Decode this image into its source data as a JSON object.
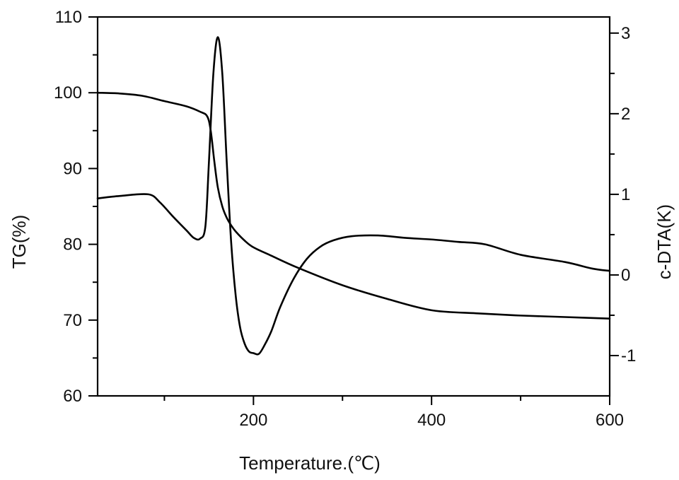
{
  "chart_data": {
    "type": "line",
    "title": "",
    "xlabel": "Temperature.(℃)",
    "ylabel": "TG(%)",
    "y2label": "c-DTA(K)",
    "xlim": [
      25,
      600
    ],
    "ylim": [
      60,
      110
    ],
    "y2lim": [
      -1.5,
      3.2
    ],
    "x_major_ticks": [
      200,
      400,
      600
    ],
    "x_minor_ticks": [
      100,
      300,
      500
    ],
    "x_tick_labels": [
      "200",
      "400",
      "600"
    ],
    "y_ticks": [
      60,
      70,
      80,
      90,
      100,
      110
    ],
    "y_tick_labels": [
      "60",
      "70",
      "80",
      "90",
      "100",
      "110"
    ],
    "y2_ticks": [
      -1,
      0,
      1,
      2,
      3
    ],
    "y2_tick_labels": [
      "-1",
      "0",
      "1",
      "2",
      "3"
    ],
    "grid": false,
    "legend": "none",
    "series": [
      {
        "axis": "left",
        "color": "#000000",
        "x": [
          25,
          50,
          75,
          100,
          125,
          140,
          148,
          152,
          156,
          160,
          165,
          170,
          175,
          180,
          190,
          200,
          220,
          250,
          300,
          350,
          400,
          450,
          500,
          550,
          600
        ],
        "y": [
          100.0,
          99.9,
          99.6,
          98.9,
          98.2,
          97.5,
          96.9,
          95.0,
          91.0,
          87.5,
          85.0,
          83.5,
          82.5,
          81.7,
          80.5,
          79.6,
          78.5,
          76.9,
          74.6,
          72.8,
          71.3,
          70.9,
          70.6,
          70.4,
          70.2
        ]
      },
      {
        "axis": "right",
        "color": "#000000",
        "x": [
          25,
          50,
          82,
          95,
          110,
          125,
          133,
          140,
          146,
          150,
          155,
          160,
          165,
          170,
          175,
          180,
          185,
          190,
          195,
          200,
          206,
          212,
          220,
          230,
          245,
          260,
          275,
          290,
          310,
          340,
          370,
          400,
          430,
          460,
          500,
          550,
          580,
          600
        ],
        "y": [
          0.95,
          0.98,
          1.0,
          0.9,
          0.72,
          0.55,
          0.46,
          0.45,
          0.6,
          1.4,
          2.5,
          2.95,
          2.5,
          1.4,
          0.4,
          -0.25,
          -0.65,
          -0.85,
          -0.95,
          -0.97,
          -0.98,
          -0.88,
          -0.7,
          -0.4,
          -0.05,
          0.2,
          0.35,
          0.43,
          0.48,
          0.49,
          0.46,
          0.44,
          0.41,
          0.38,
          0.25,
          0.16,
          0.08,
          0.05
        ]
      }
    ]
  }
}
